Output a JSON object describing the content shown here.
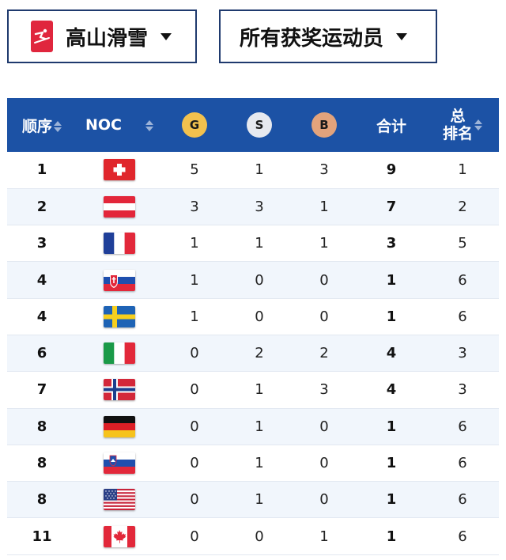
{
  "filters": {
    "sport": {
      "label": "高山滑雪",
      "icon": "alpine-skiing-icon",
      "color": "#e0263d"
    },
    "athletes": {
      "label": "所有获奖运动员"
    }
  },
  "table": {
    "header_color": "#1c52a5",
    "headers": {
      "order": "顺序",
      "noc": "NOC",
      "gold": "G",
      "silver": "S",
      "bronze": "B",
      "total": "合计",
      "overall_rank_line1": "总",
      "overall_rank_line2": "排名"
    },
    "rows": [
      {
        "order": "1",
        "flag": "switzerland-flag",
        "gold": "5",
        "silver": "1",
        "bronze": "3",
        "total": "9",
        "rank": "1"
      },
      {
        "order": "2",
        "flag": "austria-flag",
        "gold": "3",
        "silver": "3",
        "bronze": "1",
        "total": "7",
        "rank": "2"
      },
      {
        "order": "3",
        "flag": "france-flag",
        "gold": "1",
        "silver": "1",
        "bronze": "1",
        "total": "3",
        "rank": "5"
      },
      {
        "order": "4",
        "flag": "slovakia-flag",
        "gold": "1",
        "silver": "0",
        "bronze": "0",
        "total": "1",
        "rank": "6"
      },
      {
        "order": "4",
        "flag": "sweden-flag",
        "gold": "1",
        "silver": "0",
        "bronze": "0",
        "total": "1",
        "rank": "6"
      },
      {
        "order": "6",
        "flag": "italy-flag",
        "gold": "0",
        "silver": "2",
        "bronze": "2",
        "total": "4",
        "rank": "3"
      },
      {
        "order": "7",
        "flag": "norway-flag",
        "gold": "0",
        "silver": "1",
        "bronze": "3",
        "total": "4",
        "rank": "3"
      },
      {
        "order": "8",
        "flag": "germany-flag",
        "gold": "0",
        "silver": "1",
        "bronze": "0",
        "total": "1",
        "rank": "6"
      },
      {
        "order": "8",
        "flag": "slovenia-flag",
        "gold": "0",
        "silver": "1",
        "bronze": "0",
        "total": "1",
        "rank": "6"
      },
      {
        "order": "8",
        "flag": "united-states-flag",
        "gold": "0",
        "silver": "1",
        "bronze": "0",
        "total": "1",
        "rank": "6"
      },
      {
        "order": "11",
        "flag": "canada-flag",
        "gold": "0",
        "silver": "0",
        "bronze": "1",
        "total": "1",
        "rank": "6"
      }
    ]
  }
}
